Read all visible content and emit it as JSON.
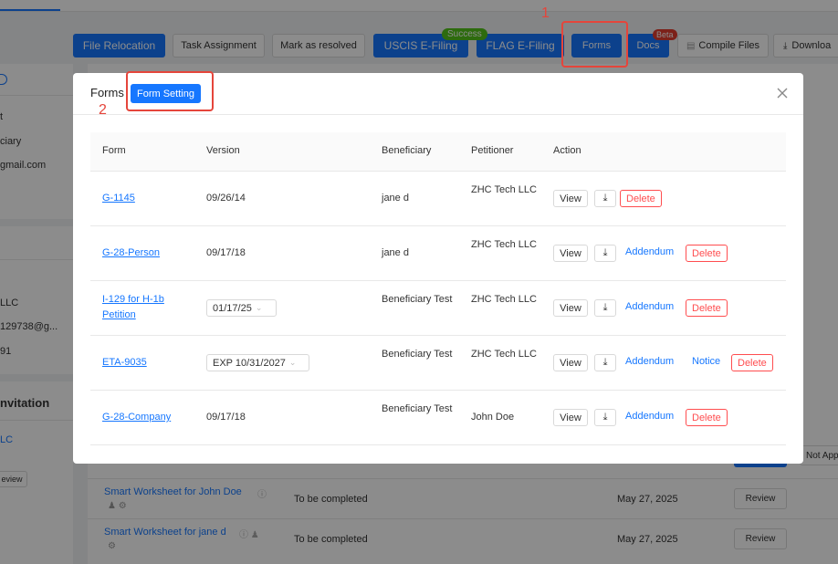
{
  "toolbar": {
    "file_relocation": "File Relocation",
    "task_assignment": "Task Assignment",
    "mark_as_resolved": "Mark as resolved",
    "uscis_efiling": "USCIS E-Filing",
    "flag_efiling": "FLAG E-Filing",
    "success_badge": "Success",
    "forms": "Forms",
    "docs": "Docs",
    "beta_badge": "Beta",
    "compile_files": "Compile Files",
    "download": "Downloa"
  },
  "annotations": {
    "forms_marker": "1",
    "form_setting_marker": "2"
  },
  "left_panel": {
    "line1": "t",
    "line2": "ciary",
    "line3": "gmail.com",
    "line4": "LLC",
    "line5": "129738@g...",
    "line6": "91",
    "invitation": "nvitation",
    "link": "LC",
    "review": "eview"
  },
  "background_rows": [
    {
      "name": "Smart Worksheet for John Doe",
      "status": "To be completed",
      "date": "May 27, 2025",
      "review": "Review"
    },
    {
      "name": "Smart Worksheet for jane d",
      "status": "To be completed",
      "date": "May 27, 2025",
      "review": "Review"
    }
  ],
  "not_applicable": "Not App",
  "modal": {
    "title": "Forms",
    "form_setting": "Form Setting",
    "columns": {
      "form": "Form",
      "version": "Version",
      "beneficiary": "Beneficiary",
      "petitioner": "Petitioner",
      "action": "Action"
    },
    "actions": {
      "view": "View",
      "addendum": "Addendum",
      "notice": "Notice",
      "delete": "Delete"
    },
    "rows": [
      {
        "form": "G-1145",
        "version": "09/26/14",
        "beneficiary": "jane d",
        "petitioner": "ZHC Tech LLC"
      },
      {
        "form": "G-28-Person",
        "version": "09/17/18",
        "beneficiary": "jane d",
        "petitioner": "ZHC Tech LLC"
      },
      {
        "form": "I-129 for H-1b Petition",
        "version": "01/17/25",
        "beneficiary": "Beneficiary Test",
        "petitioner": "ZHC Tech LLC"
      },
      {
        "form": "ETA-9035",
        "version": "EXP 10/31/2027",
        "beneficiary": "Beneficiary Test",
        "petitioner": "ZHC Tech LLC"
      },
      {
        "form": "G-28-Company",
        "version": "09/17/18",
        "beneficiary": "Beneficiary Test",
        "petitioner": "John Doe"
      }
    ]
  }
}
